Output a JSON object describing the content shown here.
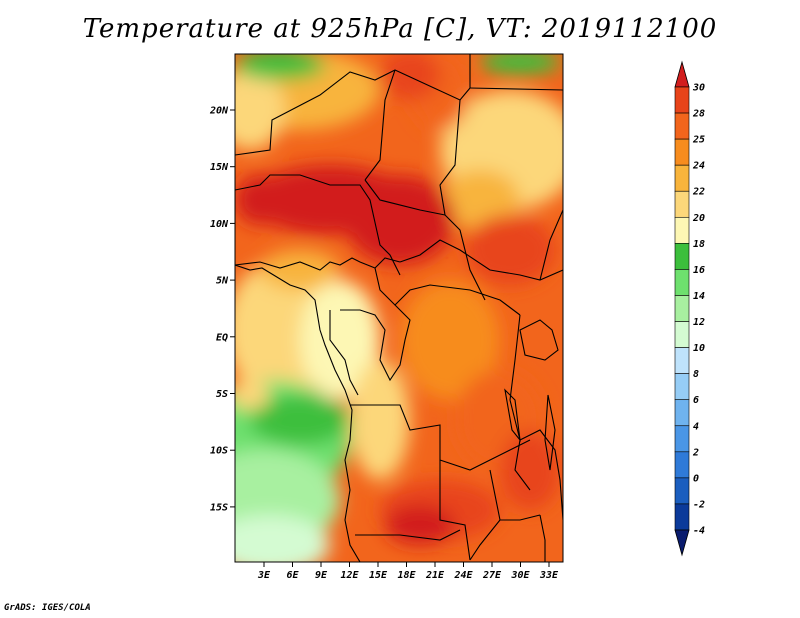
{
  "title": "Temperature at 925hPa [C], VT: 2019112100",
  "credit": "GrADS: IGES/COLA",
  "map": {
    "lat_ticks": [
      "20N",
      "15N",
      "10N",
      "5N",
      "EQ",
      "5S",
      "10S",
      "15S"
    ],
    "lon_ticks": [
      "3E",
      "6E",
      "9E",
      "12E",
      "15E",
      "18E",
      "21E",
      "24E",
      "27E",
      "30E",
      "33E"
    ]
  },
  "colorbar": {
    "labels": [
      "30",
      "28",
      "25",
      "24",
      "22",
      "20",
      "18",
      "16",
      "14",
      "12",
      "10",
      "8",
      "6",
      "4",
      "2",
      "0",
      "-2",
      "-4"
    ],
    "colors": [
      "#d21e1e",
      "#e8441a",
      "#f2651c",
      "#f78c1e",
      "#f8b43c",
      "#fcd77a",
      "#fdf7b4",
      "#3cbf3c",
      "#6ee06e",
      "#a8f0a0",
      "#d4fbd2",
      "#bfe3fc",
      "#96cdf6",
      "#6fb3ef",
      "#4a96e6",
      "#2f7ad8",
      "#1b5ebf",
      "#0b3a9a",
      "#0a1c6e"
    ]
  }
}
